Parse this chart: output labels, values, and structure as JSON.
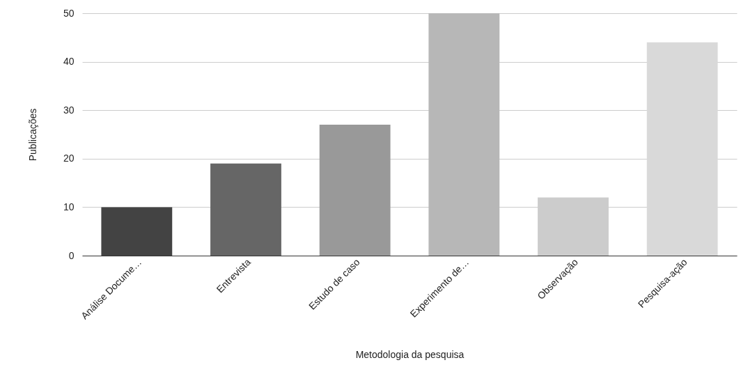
{
  "chart_data": {
    "type": "bar",
    "xlabel": "Metodologia da pesquisa",
    "ylabel": "Publicações",
    "categories": [
      "Análise Docume…",
      "Entrevista",
      "Estudo de caso",
      "Experimento de…",
      "Observação",
      "Pesquisa-ação"
    ],
    "values": [
      10,
      19,
      27,
      50,
      12,
      44
    ],
    "colors": [
      "#434343",
      "#666666",
      "#999999",
      "#b7b7b7",
      "#cccccc",
      "#d9d9d9"
    ],
    "ylim": [
      0,
      50
    ],
    "yticks": [
      0,
      10,
      20,
      30,
      40,
      50
    ],
    "grid": "y"
  }
}
